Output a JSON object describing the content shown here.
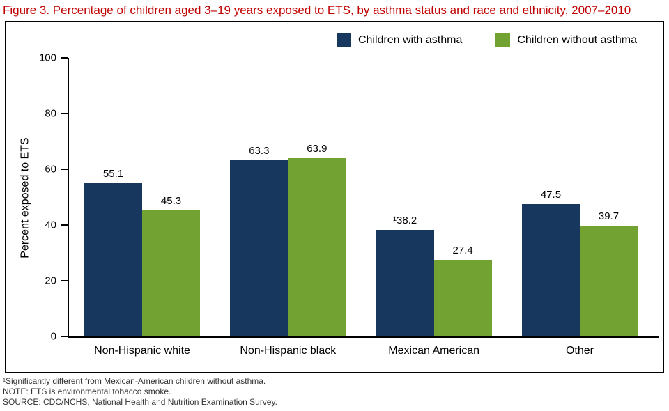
{
  "title": "Figure 3. Percentage of children aged 3–19 years exposed to ETS, by asthma status and race and ethnicity, 2007–2010",
  "colors": {
    "title": "#c00000",
    "with_asthma": "#17375e",
    "without_asthma": "#72a332",
    "axis": "#000000"
  },
  "legend": [
    {
      "label": "Children with asthma",
      "color": "#17375e"
    },
    {
      "label": "Children without asthma",
      "color": "#72a332"
    }
  ],
  "chart_data": {
    "type": "bar",
    "title": "Percentage of children aged 3–19 years exposed to ETS, by asthma status and race and ethnicity, 2007–2010",
    "xlabel": "",
    "ylabel": "Percent exposed to ETS",
    "ylim": [
      0,
      100
    ],
    "yticks": [
      0,
      20,
      40,
      60,
      80,
      100
    ],
    "grid": false,
    "legend_position": "top-right",
    "categories": [
      "Non-Hispanic white",
      "Non-Hispanic black",
      "Mexican American",
      "Other"
    ],
    "series": [
      {
        "name": "Children with asthma",
        "color": "#17375e",
        "values": [
          55.1,
          63.3,
          38.2,
          47.5
        ],
        "labels": [
          "55.1",
          "63.3",
          "¹38.2",
          "47.5"
        ]
      },
      {
        "name": "Children without asthma",
        "color": "#72a332",
        "values": [
          45.3,
          63.9,
          27.4,
          39.7
        ],
        "labels": [
          "45.3",
          "63.9",
          "27.4",
          "39.7"
        ]
      }
    ]
  },
  "footnotes": [
    "¹Significantly different from Mexican-American children without asthma.",
    "NOTE: ETS is environmental tobacco smoke.",
    "SOURCE: CDC/NCHS, National Health and Nutrition Examination Survey."
  ]
}
